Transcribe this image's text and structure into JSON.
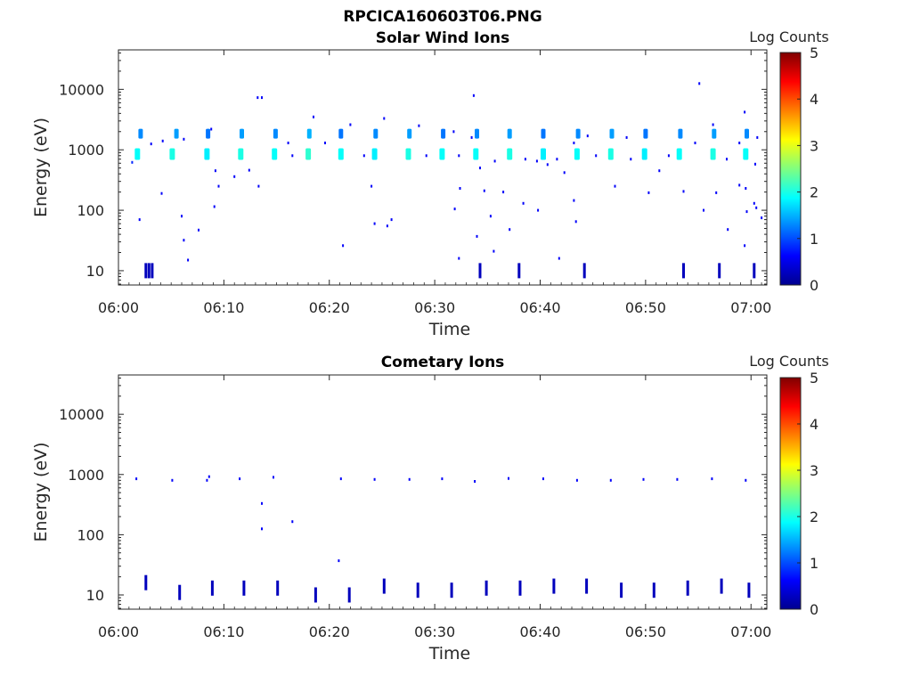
{
  "figure": {
    "title": "RPCICA160603T06.PNG"
  },
  "chart_data": [
    {
      "type": "heatmap",
      "title": "Solar Wind Ions",
      "xlabel": "Time",
      "ylabel": "Energy (eV)",
      "x_tick_labels": [
        "06:00",
        "06:10",
        "06:20",
        "06:30",
        "06:40",
        "06:50",
        "07:00"
      ],
      "x_ticks_min": [
        0,
        10,
        20,
        30,
        40,
        50,
        60
      ],
      "xlim_min": [
        0,
        61.5
      ],
      "y_tick_labels": [
        "10",
        "100",
        "1000",
        "10000"
      ],
      "y_ticks": [
        10,
        100,
        1000,
        10000
      ],
      "ylim": [
        5.8,
        45000
      ],
      "y_scale": "log",
      "colorbar": {
        "label": "Log Counts",
        "range": [
          0,
          5
        ],
        "tick_labels": [
          "0",
          "1",
          "2",
          "3",
          "4",
          "5"
        ],
        "colormap": "jet"
      },
      "grid": false,
      "points": [
        {
          "t": 2.1,
          "e": 1850,
          "c": 1.3
        },
        {
          "t": 5.5,
          "e": 1850,
          "c": 1.4
        },
        {
          "t": 8.5,
          "e": 1850,
          "c": 1.2
        },
        {
          "t": 11.7,
          "e": 1850,
          "c": 1.4
        },
        {
          "t": 14.9,
          "e": 1850,
          "c": 1.3
        },
        {
          "t": 18.1,
          "e": 1850,
          "c": 1.5
        },
        {
          "t": 21.1,
          "e": 1850,
          "c": 1.2
        },
        {
          "t": 24.4,
          "e": 1850,
          "c": 1.3
        },
        {
          "t": 27.6,
          "e": 1850,
          "c": 1.4
        },
        {
          "t": 30.8,
          "e": 1850,
          "c": 1.2
        },
        {
          "t": 34.0,
          "e": 1850,
          "c": 1.3
        },
        {
          "t": 37.1,
          "e": 1850,
          "c": 1.4
        },
        {
          "t": 40.3,
          "e": 1850,
          "c": 1.2
        },
        {
          "t": 43.6,
          "e": 1850,
          "c": 1.3
        },
        {
          "t": 46.8,
          "e": 1850,
          "c": 1.4
        },
        {
          "t": 50.0,
          "e": 1850,
          "c": 1.2
        },
        {
          "t": 53.3,
          "e": 1850,
          "c": 1.3
        },
        {
          "t": 56.5,
          "e": 1850,
          "c": 1.4
        },
        {
          "t": 59.6,
          "e": 1850,
          "c": 1.3
        },
        {
          "t": 1.8,
          "e": 850,
          "c": 1.9
        },
        {
          "t": 5.1,
          "e": 850,
          "c": 2.0
        },
        {
          "t": 8.4,
          "e": 850,
          "c": 1.8
        },
        {
          "t": 11.6,
          "e": 850,
          "c": 2.0
        },
        {
          "t": 14.8,
          "e": 850,
          "c": 1.9
        },
        {
          "t": 18.0,
          "e": 850,
          "c": 2.1
        },
        {
          "t": 21.1,
          "e": 850,
          "c": 1.9
        },
        {
          "t": 24.3,
          "e": 850,
          "c": 1.8
        },
        {
          "t": 27.5,
          "e": 850,
          "c": 2.0
        },
        {
          "t": 30.7,
          "e": 850,
          "c": 1.9
        },
        {
          "t": 33.9,
          "e": 850,
          "c": 1.9
        },
        {
          "t": 37.1,
          "e": 850,
          "c": 2.0
        },
        {
          "t": 40.3,
          "e": 850,
          "c": 1.8
        },
        {
          "t": 43.5,
          "e": 850,
          "c": 1.9
        },
        {
          "t": 46.7,
          "e": 850,
          "c": 2.0
        },
        {
          "t": 49.9,
          "e": 850,
          "c": 1.8
        },
        {
          "t": 53.2,
          "e": 850,
          "c": 1.9
        },
        {
          "t": 56.4,
          "e": 850,
          "c": 2.0
        },
        {
          "t": 59.5,
          "e": 850,
          "c": 1.9
        },
        {
          "t": 13.2,
          "e": 7300,
          "c": 0.6
        },
        {
          "t": 13.6,
          "e": 7300,
          "c": 0.6
        },
        {
          "t": 33.7,
          "e": 7900,
          "c": 0.6
        },
        {
          "t": 55.1,
          "e": 12500,
          "c": 0.6
        },
        {
          "t": 59.4,
          "e": 4200,
          "c": 0.6
        },
        {
          "t": 18.5,
          "e": 3500,
          "c": 0.6
        },
        {
          "t": 22.0,
          "e": 2600,
          "c": 0.6
        },
        {
          "t": 25.2,
          "e": 3300,
          "c": 0.6
        },
        {
          "t": 28.5,
          "e": 2500,
          "c": 0.6
        },
        {
          "t": 31.8,
          "e": 2000,
          "c": 0.6
        },
        {
          "t": 56.4,
          "e": 2600,
          "c": 0.6
        },
        {
          "t": 8.8,
          "e": 2200,
          "c": 0.6
        },
        {
          "t": 1.3,
          "e": 620,
          "c": 0.8
        },
        {
          "t": 3.1,
          "e": 1250,
          "c": 0.6
        },
        {
          "t": 4.2,
          "e": 1400,
          "c": 0.6
        },
        {
          "t": 6.2,
          "e": 1500,
          "c": 0.6
        },
        {
          "t": 9.2,
          "e": 450,
          "c": 0.6
        },
        {
          "t": 9.5,
          "e": 250,
          "c": 0.6
        },
        {
          "t": 11.0,
          "e": 360,
          "c": 0.6
        },
        {
          "t": 12.4,
          "e": 460,
          "c": 0.6
        },
        {
          "t": 13.3,
          "e": 250,
          "c": 0.6
        },
        {
          "t": 16.1,
          "e": 1300,
          "c": 0.6
        },
        {
          "t": 16.5,
          "e": 800,
          "c": 0.6
        },
        {
          "t": 19.6,
          "e": 1300,
          "c": 0.6
        },
        {
          "t": 23.3,
          "e": 800,
          "c": 0.6
        },
        {
          "t": 24.0,
          "e": 250,
          "c": 0.6
        },
        {
          "t": 29.2,
          "e": 800,
          "c": 0.6
        },
        {
          "t": 32.3,
          "e": 800,
          "c": 0.6
        },
        {
          "t": 33.5,
          "e": 1600,
          "c": 0.6
        },
        {
          "t": 34.3,
          "e": 500,
          "c": 0.6
        },
        {
          "t": 35.7,
          "e": 650,
          "c": 0.6
        },
        {
          "t": 38.6,
          "e": 700,
          "c": 0.6
        },
        {
          "t": 39.7,
          "e": 650,
          "c": 0.6
        },
        {
          "t": 40.7,
          "e": 570,
          "c": 0.6
        },
        {
          "t": 41.6,
          "e": 700,
          "c": 0.6
        },
        {
          "t": 42.3,
          "e": 420,
          "c": 0.6
        },
        {
          "t": 43.2,
          "e": 1300,
          "c": 0.6
        },
        {
          "t": 44.5,
          "e": 1700,
          "c": 0.6
        },
        {
          "t": 45.3,
          "e": 800,
          "c": 0.6
        },
        {
          "t": 48.2,
          "e": 1600,
          "c": 0.6
        },
        {
          "t": 48.6,
          "e": 700,
          "c": 0.6
        },
        {
          "t": 51.3,
          "e": 450,
          "c": 0.6
        },
        {
          "t": 52.2,
          "e": 800,
          "c": 0.6
        },
        {
          "t": 54.7,
          "e": 1300,
          "c": 0.6
        },
        {
          "t": 57.7,
          "e": 700,
          "c": 0.6
        },
        {
          "t": 58.9,
          "e": 1300,
          "c": 0.6
        },
        {
          "t": 60.4,
          "e": 580,
          "c": 0.6
        },
        {
          "t": 60.6,
          "e": 1600,
          "c": 0.6
        },
        {
          "t": 4.1,
          "e": 190,
          "c": 0.6
        },
        {
          "t": 9.1,
          "e": 115,
          "c": 0.6
        },
        {
          "t": 2.0,
          "e": 70,
          "c": 0.6
        },
        {
          "t": 6.0,
          "e": 80,
          "c": 0.6
        },
        {
          "t": 7.6,
          "e": 47,
          "c": 0.6
        },
        {
          "t": 6.2,
          "e": 32,
          "c": 0.6
        },
        {
          "t": 6.6,
          "e": 15,
          "c": 0.6
        },
        {
          "t": 21.3,
          "e": 26,
          "c": 0.6
        },
        {
          "t": 24.3,
          "e": 60,
          "c": 0.6
        },
        {
          "t": 25.5,
          "e": 55,
          "c": 0.6
        },
        {
          "t": 25.9,
          "e": 70,
          "c": 0.6
        },
        {
          "t": 31.9,
          "e": 105,
          "c": 0.6
        },
        {
          "t": 32.4,
          "e": 230,
          "c": 0.6
        },
        {
          "t": 32.3,
          "e": 16,
          "c": 0.6
        },
        {
          "t": 34.0,
          "e": 37,
          "c": 0.6
        },
        {
          "t": 34.7,
          "e": 210,
          "c": 0.6
        },
        {
          "t": 35.3,
          "e": 80,
          "c": 0.6
        },
        {
          "t": 35.6,
          "e": 21,
          "c": 0.6
        },
        {
          "t": 36.5,
          "e": 200,
          "c": 0.6
        },
        {
          "t": 37.1,
          "e": 48,
          "c": 0.6
        },
        {
          "t": 38.4,
          "e": 130,
          "c": 0.6
        },
        {
          "t": 39.8,
          "e": 100,
          "c": 0.6
        },
        {
          "t": 41.8,
          "e": 16,
          "c": 0.6
        },
        {
          "t": 43.2,
          "e": 145,
          "c": 0.6
        },
        {
          "t": 43.4,
          "e": 65,
          "c": 0.6
        },
        {
          "t": 47.1,
          "e": 250,
          "c": 0.6
        },
        {
          "t": 50.3,
          "e": 195,
          "c": 0.6
        },
        {
          "t": 53.6,
          "e": 205,
          "c": 0.6
        },
        {
          "t": 55.5,
          "e": 100,
          "c": 0.6
        },
        {
          "t": 56.7,
          "e": 195,
          "c": 0.6
        },
        {
          "t": 57.8,
          "e": 48,
          "c": 0.6
        },
        {
          "t": 58.9,
          "e": 260,
          "c": 0.6
        },
        {
          "t": 59.5,
          "e": 230,
          "c": 0.6
        },
        {
          "t": 59.4,
          "e": 26,
          "c": 0.6
        },
        {
          "t": 59.6,
          "e": 95,
          "c": 0.6
        },
        {
          "t": 60.3,
          "e": 130,
          "c": 0.6
        },
        {
          "t": 60.5,
          "e": 110,
          "c": 0.6
        },
        {
          "t": 61.0,
          "e": 75,
          "c": 0.6
        },
        {
          "t": 2.6,
          "e": 10,
          "c": 0.3
        },
        {
          "t": 2.9,
          "e": 10,
          "c": 0.3
        },
        {
          "t": 3.2,
          "e": 10,
          "c": 0.3
        },
        {
          "t": 34.3,
          "e": 10,
          "c": 0.3
        },
        {
          "t": 38.0,
          "e": 10,
          "c": 0.3
        },
        {
          "t": 44.2,
          "e": 10,
          "c": 0.3
        },
        {
          "t": 53.6,
          "e": 10,
          "c": 0.3
        },
        {
          "t": 57.0,
          "e": 10,
          "c": 0.3
        },
        {
          "t": 60.3,
          "e": 10,
          "c": 0.3
        }
      ]
    },
    {
      "type": "heatmap",
      "title": "Cometary Ions",
      "xlabel": "Time",
      "ylabel": "Energy (eV)",
      "x_tick_labels": [
        "06:00",
        "06:10",
        "06:20",
        "06:30",
        "06:40",
        "06:50",
        "07:00"
      ],
      "x_ticks_min": [
        0,
        10,
        20,
        30,
        40,
        50,
        60
      ],
      "xlim_min": [
        0,
        61.5
      ],
      "y_tick_labels": [
        "10",
        "100",
        "1000",
        "10000"
      ],
      "y_ticks": [
        10,
        100,
        1000,
        10000
      ],
      "ylim": [
        5.8,
        45000
      ],
      "y_scale": "log",
      "colorbar": {
        "label": "Log Counts",
        "range": [
          0,
          5
        ],
        "tick_labels": [
          "0",
          "1",
          "2",
          "3",
          "4",
          "5"
        ],
        "colormap": "jet"
      },
      "grid": false,
      "points": [
        {
          "t": 1.7,
          "e": 850,
          "c": 0.6
        },
        {
          "t": 5.1,
          "e": 800,
          "c": 0.6
        },
        {
          "t": 8.4,
          "e": 800,
          "c": 0.6
        },
        {
          "t": 8.6,
          "e": 920,
          "c": 0.6
        },
        {
          "t": 11.5,
          "e": 850,
          "c": 0.6
        },
        {
          "t": 14.7,
          "e": 900,
          "c": 0.6
        },
        {
          "t": 21.1,
          "e": 850,
          "c": 0.6
        },
        {
          "t": 24.3,
          "e": 830,
          "c": 0.6
        },
        {
          "t": 27.6,
          "e": 830,
          "c": 0.6
        },
        {
          "t": 30.7,
          "e": 850,
          "c": 0.6
        },
        {
          "t": 33.8,
          "e": 770,
          "c": 0.6
        },
        {
          "t": 37.0,
          "e": 860,
          "c": 0.6
        },
        {
          "t": 40.3,
          "e": 850,
          "c": 0.6
        },
        {
          "t": 43.5,
          "e": 800,
          "c": 0.6
        },
        {
          "t": 46.7,
          "e": 800,
          "c": 0.6
        },
        {
          "t": 49.8,
          "e": 830,
          "c": 0.6
        },
        {
          "t": 53.0,
          "e": 830,
          "c": 0.6
        },
        {
          "t": 56.3,
          "e": 850,
          "c": 0.6
        },
        {
          "t": 59.5,
          "e": 800,
          "c": 0.6
        },
        {
          "t": 13.6,
          "e": 330,
          "c": 0.6
        },
        {
          "t": 13.6,
          "e": 125,
          "c": 0.6
        },
        {
          "t": 16.5,
          "e": 165,
          "c": 0.6
        },
        {
          "t": 20.9,
          "e": 37,
          "c": 0.6
        },
        {
          "t": 2.6,
          "e": 16,
          "c": 0.3
        },
        {
          "t": 5.8,
          "e": 11,
          "c": 0.3
        },
        {
          "t": 8.9,
          "e": 13,
          "c": 0.3
        },
        {
          "t": 11.9,
          "e": 13,
          "c": 0.3
        },
        {
          "t": 15.1,
          "e": 13,
          "c": 0.3
        },
        {
          "t": 18.7,
          "e": 10,
          "c": 0.3
        },
        {
          "t": 21.9,
          "e": 10,
          "c": 0.3
        },
        {
          "t": 25.2,
          "e": 14,
          "c": 0.3
        },
        {
          "t": 28.4,
          "e": 12,
          "c": 0.3
        },
        {
          "t": 31.6,
          "e": 12,
          "c": 0.3
        },
        {
          "t": 34.9,
          "e": 13,
          "c": 0.3
        },
        {
          "t": 38.1,
          "e": 13,
          "c": 0.3
        },
        {
          "t": 41.3,
          "e": 14,
          "c": 0.3
        },
        {
          "t": 44.4,
          "e": 14,
          "c": 0.3
        },
        {
          "t": 47.7,
          "e": 12,
          "c": 0.3
        },
        {
          "t": 50.8,
          "e": 12,
          "c": 0.3
        },
        {
          "t": 54.0,
          "e": 13,
          "c": 0.3
        },
        {
          "t": 57.2,
          "e": 14,
          "c": 0.3
        },
        {
          "t": 59.8,
          "e": 12,
          "c": 0.3
        }
      ]
    }
  ]
}
